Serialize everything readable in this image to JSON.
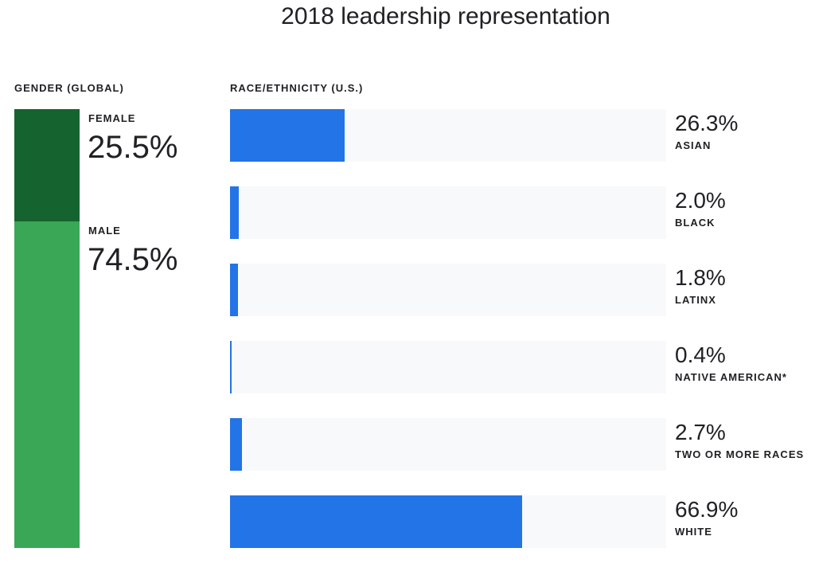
{
  "chart_data": [
    {
      "type": "bar",
      "title": "2018 leadership representation",
      "section_label": "GENDER (GLOBAL)",
      "orientation": "stacked-vertical",
      "colors": {
        "Female": "#15642f",
        "Male": "#3aa757"
      },
      "series": [
        {
          "name": "FEMALE",
          "value": 25.5,
          "label": "25.5%"
        },
        {
          "name": "MALE",
          "value": 74.5,
          "label": "74.5%"
        }
      ]
    },
    {
      "type": "bar",
      "section_label": "RACE/ETHNICITY (U.S.)",
      "orientation": "horizontal",
      "xlim": [
        0,
        100
      ],
      "bar_color": "#2374e6",
      "track_color": "#f8f9fa",
      "categories": [
        "ASIAN",
        "BLACK",
        "LATINX",
        "NATIVE AMERICAN*",
        "TWO OR MORE RACES",
        "WHITE"
      ],
      "values": [
        26.3,
        2.0,
        1.8,
        0.4,
        2.7,
        66.9
      ],
      "labels": [
        "26.3%",
        "2.0%",
        "1.8%",
        "0.4%",
        "2.7%",
        "66.9%"
      ]
    }
  ]
}
